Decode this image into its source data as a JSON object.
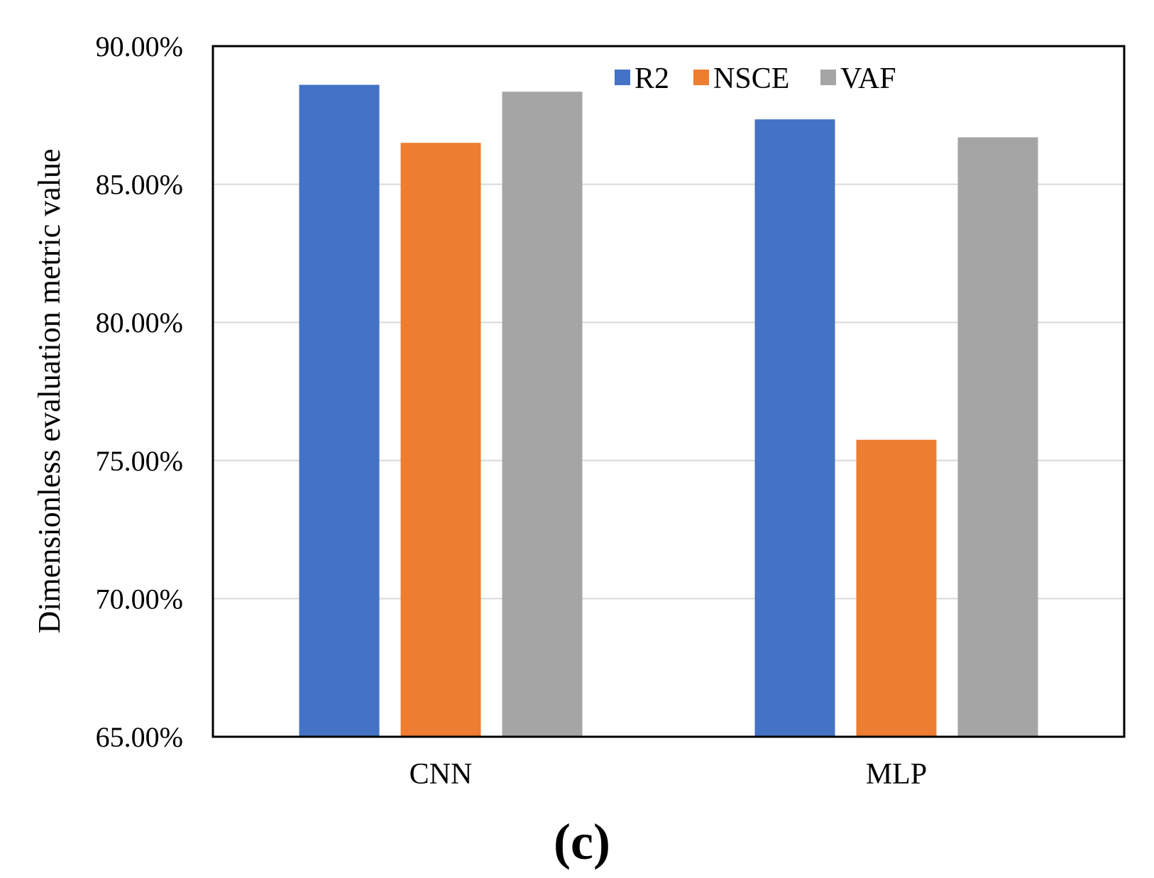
{
  "chart_data": {
    "type": "bar",
    "title": "",
    "xlabel": "",
    "ylabel": "Dimensionless evaluation metric value",
    "categories": [
      "CNN",
      "MLP"
    ],
    "series": [
      {
        "name": "R2",
        "color": "#4472C4",
        "values": [
          88.6,
          87.35
        ]
      },
      {
        "name": "NSCE",
        "color": "#ED7D31",
        "values": [
          86.5,
          75.75
        ]
      },
      {
        "name": "VAF",
        "color": "#A5A5A5",
        "values": [
          88.35,
          86.7
        ]
      }
    ],
    "ylim": [
      65,
      90
    ],
    "yticks": [
      65,
      70,
      75,
      80,
      85,
      90
    ],
    "ytick_labels": [
      "65.00%",
      "70.00%",
      "75.00%",
      "80.00%",
      "85.00%",
      "90.00%"
    ],
    "grid": true,
    "legend_position": "top-center",
    "panel_label": "(c)"
  }
}
